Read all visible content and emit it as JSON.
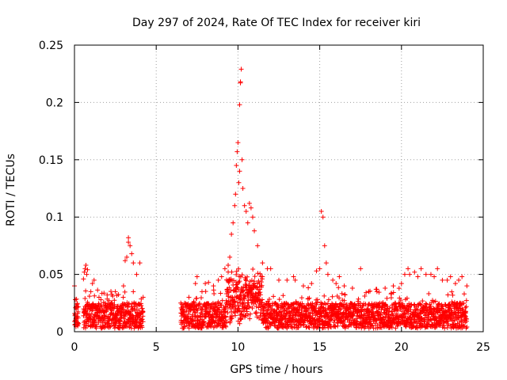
{
  "chart_data": {
    "type": "scatter",
    "title": "Day 297 of 2024, Rate Of TEC Index for receiver kiri",
    "xlabel": "GPS time / hours",
    "ylabel": "ROTI / TECUs",
    "xlim": [
      0,
      25
    ],
    "ylim": [
      0,
      0.25
    ],
    "xticks": [
      "0",
      "5",
      "10",
      "15",
      "20",
      "25"
    ],
    "yticks": [
      "0",
      "0.05",
      "0.1",
      "0.15",
      "0.2",
      "0.25"
    ],
    "grid": true,
    "marker": "+",
    "marker_color": "#ff0000",
    "series": [
      {
        "name": "ROTI",
        "points": [
          [
            0.0,
            0.04
          ],
          [
            0.05,
            0.015
          ],
          [
            0.05,
            0.01
          ],
          [
            0.1,
            0.022
          ],
          [
            0.15,
            0.012
          ],
          [
            0.2,
            0.016
          ],
          [
            0.55,
            0.046
          ],
          [
            0.6,
            0.052
          ],
          [
            0.65,
            0.055
          ],
          [
            0.7,
            0.058
          ],
          [
            0.75,
            0.05
          ],
          [
            0.8,
            0.054
          ],
          [
            1.0,
            0.035
          ],
          [
            1.1,
            0.042
          ],
          [
            1.2,
            0.045
          ],
          [
            1.5,
            0.03
          ],
          [
            2.0,
            0.032
          ],
          [
            2.5,
            0.035
          ],
          [
            3.0,
            0.04
          ],
          [
            3.1,
            0.062
          ],
          [
            3.2,
            0.065
          ],
          [
            3.3,
            0.078
          ],
          [
            3.3,
            0.082
          ],
          [
            3.4,
            0.075
          ],
          [
            3.5,
            0.068
          ],
          [
            3.6,
            0.06
          ],
          [
            3.8,
            0.05
          ],
          [
            4.0,
            0.06
          ],
          [
            4.2,
            0.03
          ],
          [
            6.5,
            0.025
          ],
          [
            7.0,
            0.03
          ],
          [
            7.4,
            0.042
          ],
          [
            7.5,
            0.048
          ],
          [
            7.8,
            0.035
          ],
          [
            8.0,
            0.042
          ],
          [
            8.2,
            0.043
          ],
          [
            8.5,
            0.04
          ],
          [
            8.8,
            0.045
          ],
          [
            9.0,
            0.048
          ],
          [
            9.2,
            0.055
          ],
          [
            9.4,
            0.058
          ],
          [
            9.5,
            0.065
          ],
          [
            9.6,
            0.085
          ],
          [
            9.7,
            0.095
          ],
          [
            9.8,
            0.11
          ],
          [
            9.85,
            0.12
          ],
          [
            9.9,
            0.145
          ],
          [
            9.95,
            0.157
          ],
          [
            10.0,
            0.165
          ],
          [
            10.05,
            0.13
          ],
          [
            10.1,
            0.14
          ],
          [
            10.1,
            0.198
          ],
          [
            10.15,
            0.217
          ],
          [
            10.15,
            0.218
          ],
          [
            10.2,
            0.229
          ],
          [
            10.25,
            0.15
          ],
          [
            10.3,
            0.125
          ],
          [
            10.4,
            0.11
          ],
          [
            10.5,
            0.105
          ],
          [
            10.6,
            0.095
          ],
          [
            10.7,
            0.112
          ],
          [
            10.8,
            0.108
          ],
          [
            10.9,
            0.1
          ],
          [
            11.0,
            0.088
          ],
          [
            11.2,
            0.075
          ],
          [
            11.5,
            0.06
          ],
          [
            11.8,
            0.055
          ],
          [
            12.0,
            0.055
          ],
          [
            12.5,
            0.045
          ],
          [
            13.0,
            0.045
          ],
          [
            13.4,
            0.048
          ],
          [
            13.5,
            0.045
          ],
          [
            14.0,
            0.04
          ],
          [
            14.5,
            0.042
          ],
          [
            14.8,
            0.053
          ],
          [
            15.0,
            0.055
          ],
          [
            15.1,
            0.105
          ],
          [
            15.2,
            0.1
          ],
          [
            15.3,
            0.075
          ],
          [
            15.4,
            0.06
          ],
          [
            15.5,
            0.05
          ],
          [
            15.8,
            0.045
          ],
          [
            16.0,
            0.042
          ],
          [
            16.2,
            0.048
          ],
          [
            16.5,
            0.04
          ],
          [
            17.0,
            0.038
          ],
          [
            17.5,
            0.055
          ],
          [
            18.0,
            0.035
          ],
          [
            18.5,
            0.035
          ],
          [
            19.0,
            0.038
          ],
          [
            19.5,
            0.04
          ],
          [
            20.0,
            0.042
          ],
          [
            20.2,
            0.05
          ],
          [
            20.4,
            0.055
          ],
          [
            20.5,
            0.05
          ],
          [
            20.8,
            0.052
          ],
          [
            21.0,
            0.048
          ],
          [
            21.2,
            0.055
          ],
          [
            21.5,
            0.05
          ],
          [
            21.8,
            0.05
          ],
          [
            22.0,
            0.048
          ],
          [
            22.2,
            0.055
          ],
          [
            22.5,
            0.045
          ],
          [
            22.8,
            0.045
          ],
          [
            23.0,
            0.048
          ],
          [
            23.3,
            0.042
          ],
          [
            23.5,
            0.045
          ],
          [
            23.7,
            0.048
          ],
          [
            24.0,
            0.04
          ]
        ]
      }
    ]
  }
}
